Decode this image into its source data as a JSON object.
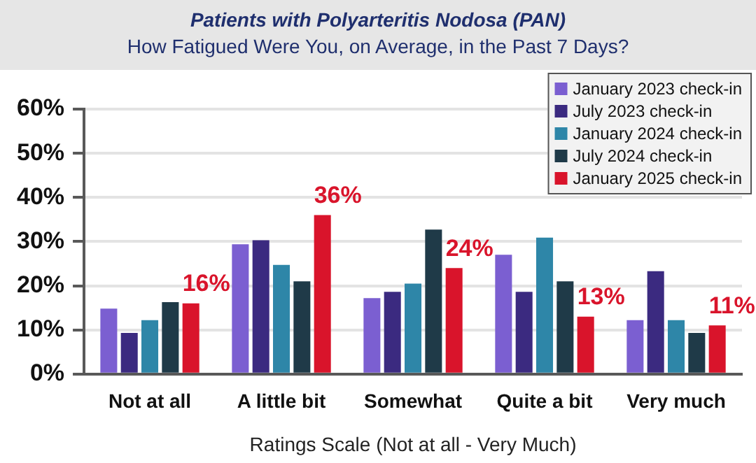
{
  "chart_data": {
    "type": "bar",
    "title": "Patients with Polyarteritis Nodosa (PAN)",
    "subtitle": "How Fatigued Were You, on Average, in the Past 7 Days?",
    "xlabel": "Ratings Scale (Not at all - Very Much)",
    "categories": [
      "Not at all",
      "A little bit",
      "Somewhat",
      "Quite a bit",
      "Very much"
    ],
    "series": [
      {
        "name": "January 2023 check-in",
        "color": "#7b5fd1",
        "values": [
          14.8,
          29.4,
          17.2,
          27,
          12.2
        ]
      },
      {
        "name": "July 2023 check-in",
        "color": "#3b2a80",
        "values": [
          9.3,
          30.3,
          18.6,
          18.6,
          23.3
        ]
      },
      {
        "name": "January 2024 check-in",
        "color": "#2e86a8",
        "values": [
          12.2,
          24.7,
          20.5,
          30.9,
          12.2
        ]
      },
      {
        "name": "July 2024 check-in",
        "color": "#1f3a48",
        "values": [
          16.3,
          21,
          32.7,
          21,
          9.3
        ]
      },
      {
        "name": "January 2025 check-in",
        "color": "#d9142b",
        "values": [
          16,
          36,
          24,
          13,
          11
        ],
        "value_labels": [
          "16%",
          "36%",
          "24%",
          "13%",
          "11%"
        ]
      }
    ],
    "ylim": [
      0,
      60
    ],
    "yticks": [
      {
        "value": 0,
        "label": "0%"
      },
      {
        "value": 10,
        "label": "10%"
      },
      {
        "value": 20,
        "label": "20%"
      },
      {
        "value": 30,
        "label": "30%"
      },
      {
        "value": 40,
        "label": "40%"
      },
      {
        "value": 50,
        "label": "50%"
      },
      {
        "value": 60,
        "label": "60%"
      }
    ],
    "grid": "y",
    "legend": "top right"
  }
}
